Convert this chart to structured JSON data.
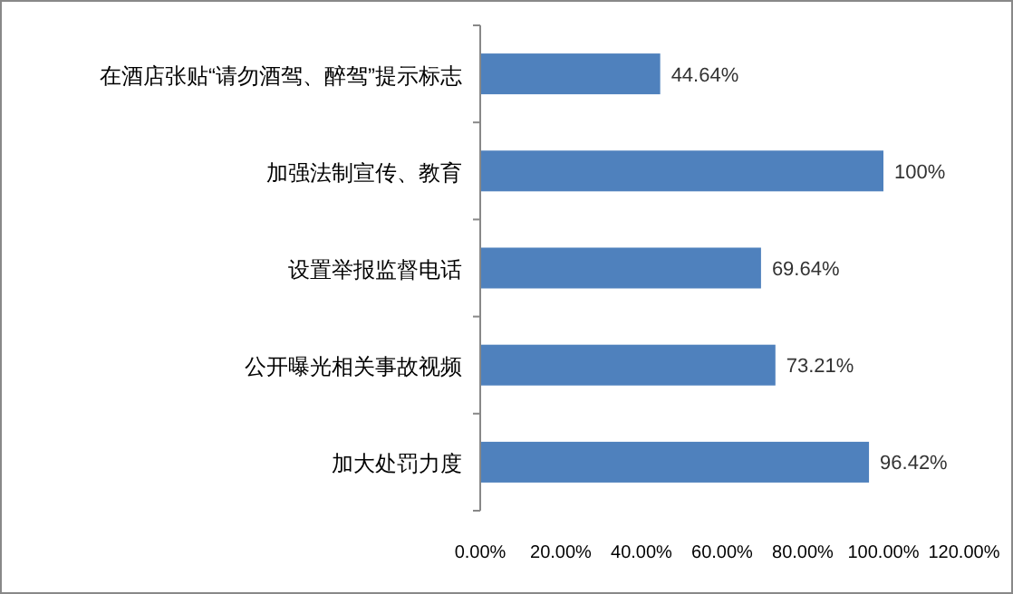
{
  "chart_data": {
    "type": "bar",
    "orientation": "horizontal",
    "categories": [
      "在酒店张贴“请勿酒驾、醉驾”提示标志",
      "加强法制宣传、教育",
      "设置举报监督电话",
      "公开曝光相关事故视频",
      "加大处罚力度"
    ],
    "values": [
      44.64,
      100,
      69.64,
      73.21,
      96.42
    ],
    "value_labels": [
      "44.64%",
      "100%",
      "69.64%",
      "73.21%",
      "96.42%"
    ],
    "color": "#4f81bd",
    "xlim": [
      0,
      120
    ],
    "xticks": [
      {
        "value": 0,
        "label": "0.00%"
      },
      {
        "value": 20,
        "label": "20.00%"
      },
      {
        "value": 40,
        "label": "40.00%"
      },
      {
        "value": 60,
        "label": "60.00%"
      },
      {
        "value": 80,
        "label": "80.00%"
      },
      {
        "value": 100,
        "label": "100.00%"
      },
      {
        "value": 120,
        "label": "120.00%"
      }
    ],
    "grid": false
  }
}
